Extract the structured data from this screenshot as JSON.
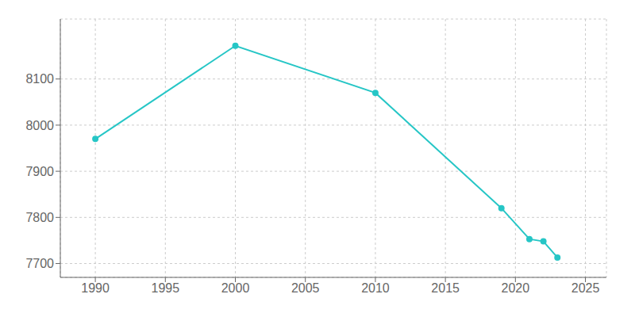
{
  "chart_data": {
    "type": "line",
    "x": [
      1990,
      2000,
      2010,
      2019,
      2021,
      2022,
      2023
    ],
    "values": [
      7970,
      8172,
      8070,
      7820,
      7753,
      7748,
      7713
    ],
    "color": "#26C6C6",
    "marker": "circle",
    "xlim": [
      1987.5,
      2026.5
    ],
    "ylim": [
      7670,
      8230
    ],
    "xticks": [
      1990,
      1995,
      2000,
      2005,
      2010,
      2015,
      2020,
      2025
    ],
    "yticks": [
      7700,
      7800,
      7900,
      8000,
      8100
    ],
    "grid": true
  }
}
